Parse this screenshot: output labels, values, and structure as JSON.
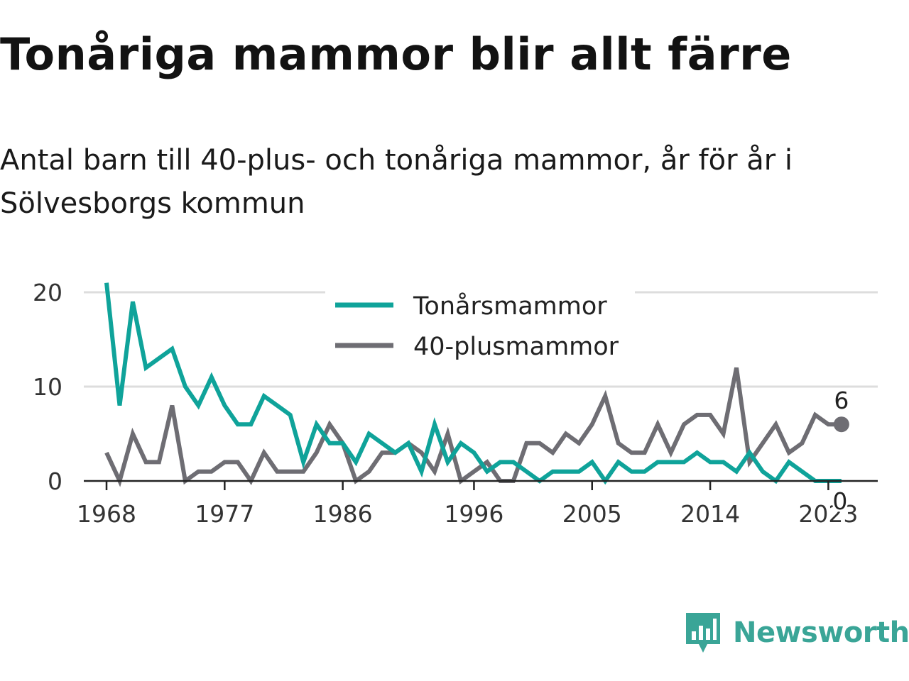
{
  "title": "Tonåriga mammor blir allt färre",
  "subtitle": "Antal barn till 40-plus- och tonåriga mammor, år för år i Sölvesborgs kommun",
  "brand": {
    "name": "Newsworthy",
    "icon": "newsworthy-logo-icon",
    "color": "#3aa597"
  },
  "chart_data": {
    "type": "line",
    "title": "Tonåriga mammor blir allt färre",
    "subtitle": "Antal barn till 40-plus- och tonåriga mammor, år för år i Sölvesborgs kommun",
    "xlabel": "",
    "ylabel": "",
    "xlim": [
      1967,
      2027
    ],
    "ylim": [
      0,
      20
    ],
    "x_ticks": [
      1968,
      1977,
      1986,
      1996,
      2005,
      2014,
      2023
    ],
    "y_ticks": [
      0,
      10,
      20
    ],
    "grid": "horizontal",
    "legend_position": "top-center",
    "x": [
      1968,
      1969,
      1970,
      1971,
      1972,
      1973,
      1974,
      1975,
      1976,
      1977,
      1978,
      1979,
      1980,
      1981,
      1982,
      1983,
      1984,
      1985,
      1986,
      1987,
      1988,
      1989,
      1990,
      1991,
      1992,
      1993,
      1994,
      1995,
      1996,
      1997,
      1998,
      1999,
      2000,
      2001,
      2002,
      2003,
      2004,
      2005,
      2006,
      2007,
      2008,
      2009,
      2010,
      2011,
      2012,
      2013,
      2014,
      2015,
      2016,
      2017,
      2018,
      2019,
      2020,
      2021,
      2022,
      2023,
      2024
    ],
    "series": [
      {
        "name": "Tonårsmammor",
        "color": "#0fa39a",
        "values": [
          21,
          8,
          19,
          12,
          13,
          14,
          10,
          8,
          11,
          8,
          6,
          6,
          9,
          8,
          7,
          2,
          6,
          4,
          4,
          2,
          5,
          4,
          3,
          4,
          1,
          6,
          2,
          4,
          3,
          1,
          2,
          2,
          1,
          0,
          1,
          1,
          1,
          2,
          0,
          2,
          1,
          1,
          2,
          2,
          2,
          3,
          2,
          2,
          1,
          3,
          1,
          0,
          2,
          1,
          0,
          0,
          0
        ],
        "end_label": "0"
      },
      {
        "name": "40-plusmammor",
        "color": "#6e6d73",
        "values": [
          3,
          0,
          5,
          2,
          2,
          8,
          0,
          1,
          1,
          2,
          2,
          0,
          3,
          1,
          1,
          1,
          3,
          6,
          4,
          0,
          1,
          3,
          3,
          4,
          3,
          1,
          5,
          0,
          1,
          2,
          0,
          0,
          4,
          4,
          3,
          5,
          4,
          6,
          9,
          4,
          3,
          3,
          6,
          3,
          6,
          7,
          7,
          5,
          12,
          2,
          4,
          6,
          3,
          4,
          7,
          6,
          6
        ],
        "end_label": "6"
      }
    ]
  }
}
